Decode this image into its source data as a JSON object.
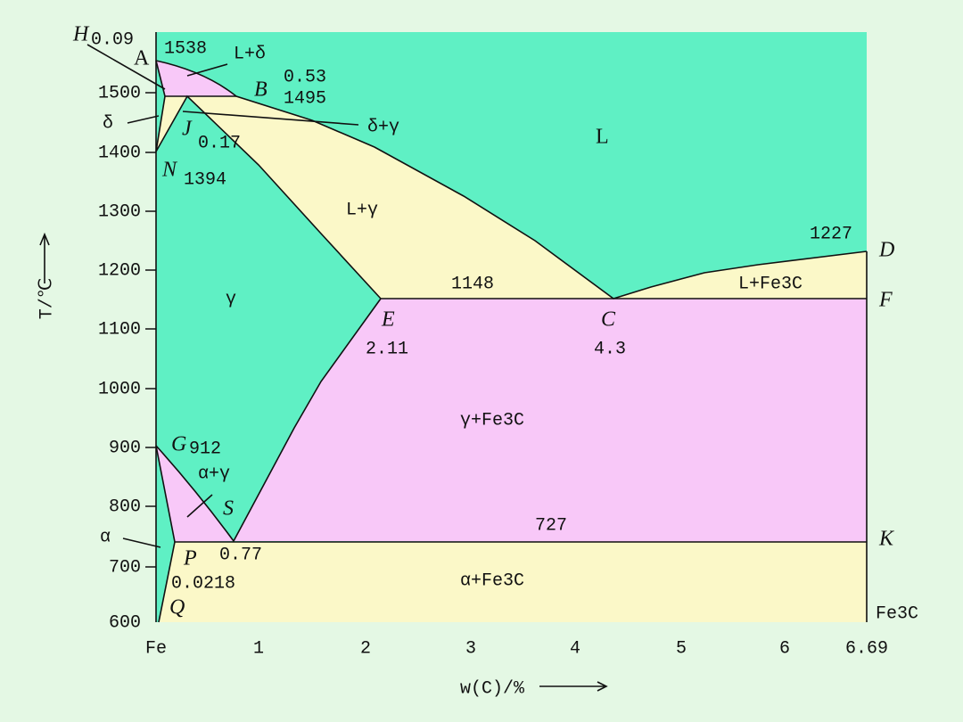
{
  "axes": {
    "y_label": "T/℃",
    "y_ticks": [
      "1500",
      "1400",
      "1300",
      "1200",
      "1100",
      "1000",
      "900",
      "800",
      "700",
      "600"
    ],
    "x_label": "w(C)/%",
    "x_ticks": [
      "Fe",
      "1",
      "2",
      "3",
      "4",
      "5",
      "6",
      "6.69"
    ]
  },
  "points": {
    "H": "H",
    "H_value": "0.09",
    "A": "A",
    "A_value": "1538",
    "B": "B",
    "B_value_1": "0.53",
    "B_value_2": "1495",
    "J": "J",
    "J_value": "0.17",
    "N": "N",
    "N_value": "1394",
    "D": "D",
    "D_value": "1227",
    "F": "F",
    "F_value": "1148",
    "E": "E",
    "E_value": "2.11",
    "C": "C",
    "C_value": "4.3",
    "G": "G",
    "G_value": "912",
    "S": "S",
    "S_value": "0.77",
    "P": "P",
    "P_value": "0.0218",
    "K": "K",
    "K_value": "727",
    "Q": "Q"
  },
  "regions": {
    "L": "L",
    "L_delta": "L+δ",
    "delta": "δ",
    "delta_gamma": "δ+γ",
    "L_gamma": "L+γ",
    "gamma": "γ",
    "L_Fe3C": "L+Fe3C",
    "gamma_Fe3C": "γ+Fe3C",
    "alpha_gamma": "α+γ",
    "alpha": "α",
    "alpha_Fe3C": "α+Fe3C",
    "Fe3C": "Fe3C"
  }
}
